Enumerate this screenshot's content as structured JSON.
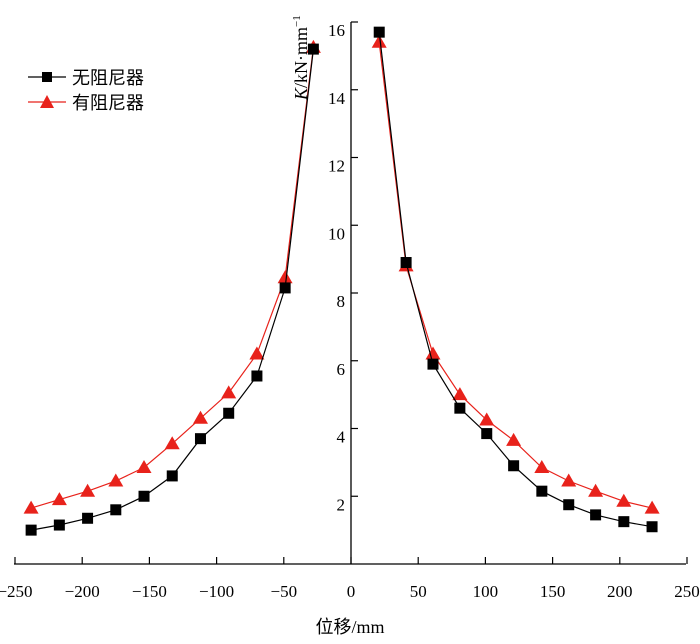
{
  "chart_data": {
    "type": "line",
    "xlabel": {
      "main": "位移",
      "unit": "/mm"
    },
    "ylabel": {
      "var": "K",
      "unit": "/kN·mm",
      "sup": "−1"
    },
    "xlim": [
      -250,
      250
    ],
    "ylim": [
      0,
      16
    ],
    "x_ticks": [
      -250,
      -200,
      -150,
      -100,
      -50,
      0,
      50,
      100,
      150,
      200,
      250
    ],
    "x_tick_labels": [
      "−250",
      "−200",
      "−150",
      "−100",
      "−50",
      "0",
      "50",
      "100",
      "150",
      "200",
      "250"
    ],
    "y_ticks": [
      2,
      4,
      6,
      8,
      10,
      12,
      14,
      16
    ],
    "y_tick_labels": [
      "2",
      "4",
      "6",
      "8",
      "10",
      "12",
      "14",
      "16"
    ],
    "grid": false,
    "legend": "top-left",
    "colors": {
      "series_0": "#000000",
      "series_1": "#e8221b"
    },
    "series": [
      {
        "name": "无阻尼器",
        "marker": "square",
        "segments": [
          {
            "x": [
              -238,
              -217,
              -196,
              -175,
              -154,
              -133,
              -112,
              -91,
              -70,
              -49,
              -28
            ],
            "y": [
              1.0,
              1.15,
              1.35,
              1.6,
              2.0,
              2.6,
              3.7,
              4.45,
              5.55,
              8.15,
              15.2
            ]
          },
          {
            "x": [
              21,
              41,
              61,
              81,
              101,
              121,
              142,
              162,
              182,
              203,
              224
            ],
            "y": [
              15.7,
              8.9,
              5.9,
              4.6,
              3.85,
              2.9,
              2.15,
              1.75,
              1.45,
              1.25,
              1.1
            ]
          }
        ]
      },
      {
        "name": "有阻尼器",
        "marker": "triangle",
        "segments": [
          {
            "x": [
              -238,
              -217,
              -196,
              -175,
              -154,
              -133,
              -112,
              -91,
              -70,
              -49,
              -28
            ],
            "y": [
              1.65,
              1.9,
              2.15,
              2.45,
              2.85,
              3.55,
              4.3,
              5.05,
              6.2,
              8.45,
              15.25
            ]
          },
          {
            "x": [
              21,
              41,
              61,
              81,
              101,
              121,
              142,
              162,
              182,
              203,
              224
            ],
            "y": [
              15.4,
              8.8,
              6.2,
              5.0,
              4.25,
              3.65,
              2.85,
              2.45,
              2.15,
              1.85,
              1.65
            ]
          }
        ]
      }
    ]
  }
}
